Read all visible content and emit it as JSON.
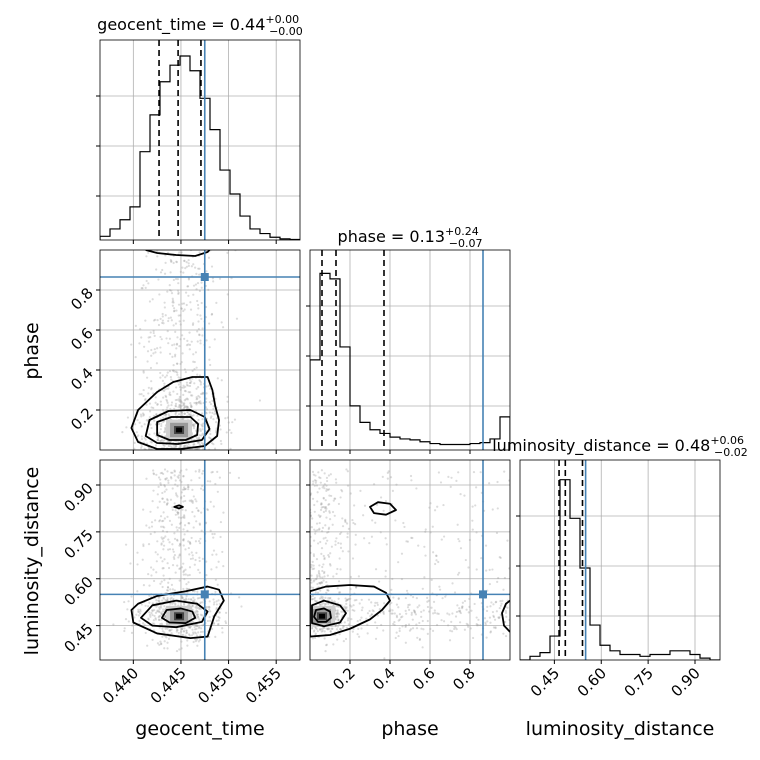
{
  "chart_data": {
    "type": "corner",
    "parameters": [
      "geocent_time",
      "phase",
      "luminosity_distance"
    ],
    "truths": {
      "geocent_time": 0.4475,
      "phase": 0.865,
      "luminosity_distance": 0.55
    },
    "diagonal": [
      {
        "name": "geocent_time",
        "title": {
          "prefix": "geocent_time = 0.44",
          "plus": "+0.00",
          "minus": "−0.00"
        },
        "range": [
          0.4365,
          0.4575
        ],
        "xticks": [
          0.44,
          0.445,
          0.45,
          0.455
        ],
        "xtick_labels": [
          "0.440",
          "0.445",
          "0.450",
          "0.455"
        ],
        "xlabel": "geocent_time",
        "quantiles": [
          0.4427,
          0.4447,
          0.4471
        ],
        "hist_max": 1.0,
        "hist": [
          0.02,
          0.06,
          0.11,
          0.18,
          0.48,
          0.68,
          0.86,
          0.95,
          1.0,
          0.92,
          0.77,
          0.6,
          0.38,
          0.25,
          0.13,
          0.06,
          0.035,
          0.015,
          0.006,
          0.003
        ]
      },
      {
        "name": "phase",
        "title": {
          "prefix": "phase = 0.13",
          "plus": "+0.24",
          "minus": "−0.07"
        },
        "range": [
          0.0,
          1.0
        ],
        "xticks": [
          0.2,
          0.4,
          0.6,
          0.8
        ],
        "xtick_labels": [
          "0.2",
          "0.4",
          "0.6",
          "0.8"
        ],
        "xlabel": "phase",
        "quantiles": [
          0.06,
          0.13,
          0.37
        ],
        "hist_max": 1.0,
        "hist": [
          0.49,
          0.96,
          0.93,
          0.56,
          0.24,
          0.15,
          0.11,
          0.09,
          0.07,
          0.06,
          0.055,
          0.045,
          0.035,
          0.03,
          0.03,
          0.03,
          0.035,
          0.04,
          0.06,
          0.18
        ]
      },
      {
        "name": "luminosity_distance",
        "title": {
          "prefix": "luminosity_distance = 0.48",
          "plus": "+0.06",
          "minus": "−0.02"
        },
        "range": [
          0.34,
          0.98
        ],
        "xticks": [
          0.45,
          0.6,
          0.75,
          0.9
        ],
        "xtick_labels": [
          "0.45",
          "0.60",
          "0.75",
          "0.90"
        ],
        "xlabel": "luminosity_distance",
        "quantiles": [
          0.465,
          0.485,
          0.54
        ],
        "hist_max": 1.0,
        "hist": [
          0.0,
          0.02,
          0.04,
          0.13,
          0.98,
          0.77,
          0.5,
          0.19,
          0.08,
          0.05,
          0.03,
          0.03,
          0.02,
          0.03,
          0.03,
          0.05,
          0.05,
          0.03,
          0.01,
          0.0
        ]
      }
    ],
    "offdiagonal": [
      {
        "x": "geocent_time",
        "y": "phase",
        "yticks": [
          0.2,
          0.4,
          0.6,
          0.8
        ],
        "ytick_labels": [
          "0.2",
          "0.4",
          "0.6",
          "0.8"
        ],
        "ylabel": "phase",
        "peak": [
          0.4448,
          0.1
        ],
        "contours": [
          [
            [
              0.4425,
              0.14
            ],
            [
              0.444,
              0.165
            ],
            [
              0.446,
              0.165
            ],
            [
              0.4468,
              0.13
            ],
            [
              0.4467,
              0.075
            ],
            [
              0.4455,
              0.05
            ],
            [
              0.4438,
              0.05
            ],
            [
              0.4425,
              0.075
            ]
          ],
          [
            [
              0.4417,
              0.15
            ],
            [
              0.4437,
              0.195
            ],
            [
              0.446,
              0.2
            ],
            [
              0.4475,
              0.165
            ],
            [
              0.448,
              0.105
            ],
            [
              0.4472,
              0.05
            ],
            [
              0.4447,
              0.03
            ],
            [
              0.4425,
              0.035
            ],
            [
              0.4413,
              0.07
            ]
          ],
          [
            [
              0.4405,
              0.2
            ],
            [
              0.4425,
              0.29
            ],
            [
              0.4442,
              0.34
            ],
            [
              0.4462,
              0.365
            ],
            [
              0.4478,
              0.365
            ],
            [
              0.4483,
              0.3
            ],
            [
              0.4486,
              0.22
            ],
            [
              0.449,
              0.15
            ],
            [
              0.4488,
              0.07
            ],
            [
              0.4475,
              0.02
            ],
            [
              0.445,
              0.005
            ],
            [
              0.4425,
              0.005
            ],
            [
              0.4405,
              0.04
            ],
            [
              0.4398,
              0.11
            ]
          ]
        ],
        "open_contour": [
          [
            0.4413,
            1.0
          ],
          [
            0.4425,
            0.985
          ],
          [
            0.4445,
            0.975
          ],
          [
            0.4465,
            0.97
          ],
          [
            0.4478,
            0.99
          ],
          [
            0.448,
            1.0
          ]
        ]
      },
      {
        "x": "geocent_time",
        "y": "luminosity_distance",
        "yticks": [
          0.45,
          0.6,
          0.75,
          0.9
        ],
        "ytick_labels": [
          "0.45",
          "0.60",
          "0.75",
          "0.90"
        ],
        "ylabel": "luminosity_distance",
        "peak": [
          0.4448,
          0.48
        ],
        "contours": [
          [
            [
              0.4435,
              0.5
            ],
            [
              0.445,
              0.505
            ],
            [
              0.4462,
              0.495
            ],
            [
              0.4465,
              0.475
            ],
            [
              0.4455,
              0.458
            ],
            [
              0.4438,
              0.46
            ],
            [
              0.443,
              0.475
            ]
          ],
          [
            [
              0.442,
              0.515
            ],
            [
              0.4445,
              0.53
            ],
            [
              0.4467,
              0.52
            ],
            [
              0.4478,
              0.495
            ],
            [
              0.4472,
              0.462
            ],
            [
              0.4445,
              0.445
            ],
            [
              0.442,
              0.45
            ],
            [
              0.4408,
              0.475
            ]
          ],
          [
            [
              0.4405,
              0.52
            ],
            [
              0.4425,
              0.545
            ],
            [
              0.4455,
              0.56
            ],
            [
              0.4478,
              0.575
            ],
            [
              0.449,
              0.565
            ],
            [
              0.4495,
              0.53
            ],
            [
              0.4485,
              0.48
            ],
            [
              0.4478,
              0.415
            ],
            [
              0.446,
              0.41
            ],
            [
              0.4425,
              0.425
            ],
            [
              0.44,
              0.46
            ],
            [
              0.4398,
              0.5
            ]
          ],
          [
            [
              0.4443,
              0.83
            ],
            [
              0.4448,
              0.835
            ],
            [
              0.4452,
              0.83
            ],
            [
              0.4448,
              0.825
            ]
          ]
        ]
      },
      {
        "x": "phase",
        "y": "luminosity_distance",
        "peak": [
          0.06,
          0.48
        ],
        "contours": [
          [
            [
              0.03,
              0.5
            ],
            [
              0.07,
              0.505
            ],
            [
              0.1,
              0.495
            ],
            [
              0.105,
              0.475
            ],
            [
              0.08,
              0.462
            ],
            [
              0.04,
              0.462
            ],
            [
              0.02,
              0.478
            ]
          ],
          [
            [
              0.01,
              0.515
            ],
            [
              0.07,
              0.53
            ],
            [
              0.15,
              0.515
            ],
            [
              0.18,
              0.49
            ],
            [
              0.15,
              0.46
            ],
            [
              0.07,
              0.448
            ],
            [
              0.01,
              0.458
            ]
          ],
          [
            [
              0.0,
              0.56
            ],
            [
              0.08,
              0.575
            ],
            [
              0.2,
              0.58
            ],
            [
              0.32,
              0.575
            ],
            [
              0.38,
              0.555
            ],
            [
              0.4,
              0.53
            ],
            [
              0.36,
              0.5
            ],
            [
              0.3,
              0.47
            ],
            [
              0.2,
              0.44
            ],
            [
              0.1,
              0.42
            ],
            [
              0.0,
              0.415
            ]
          ],
          [
            [
              0.3,
              0.83
            ],
            [
              0.34,
              0.845
            ],
            [
              0.4,
              0.84
            ],
            [
              0.43,
              0.82
            ],
            [
              0.38,
              0.805
            ],
            [
              0.32,
              0.81
            ]
          ]
        ],
        "open_contour": [
          [
            1.0,
            0.43
          ],
          [
            0.97,
            0.45
          ],
          [
            0.96,
            0.49
          ],
          [
            0.98,
            0.52
          ],
          [
            1.0,
            0.53
          ]
        ]
      }
    ],
    "grid": true,
    "truth_color": "#4682b4"
  }
}
